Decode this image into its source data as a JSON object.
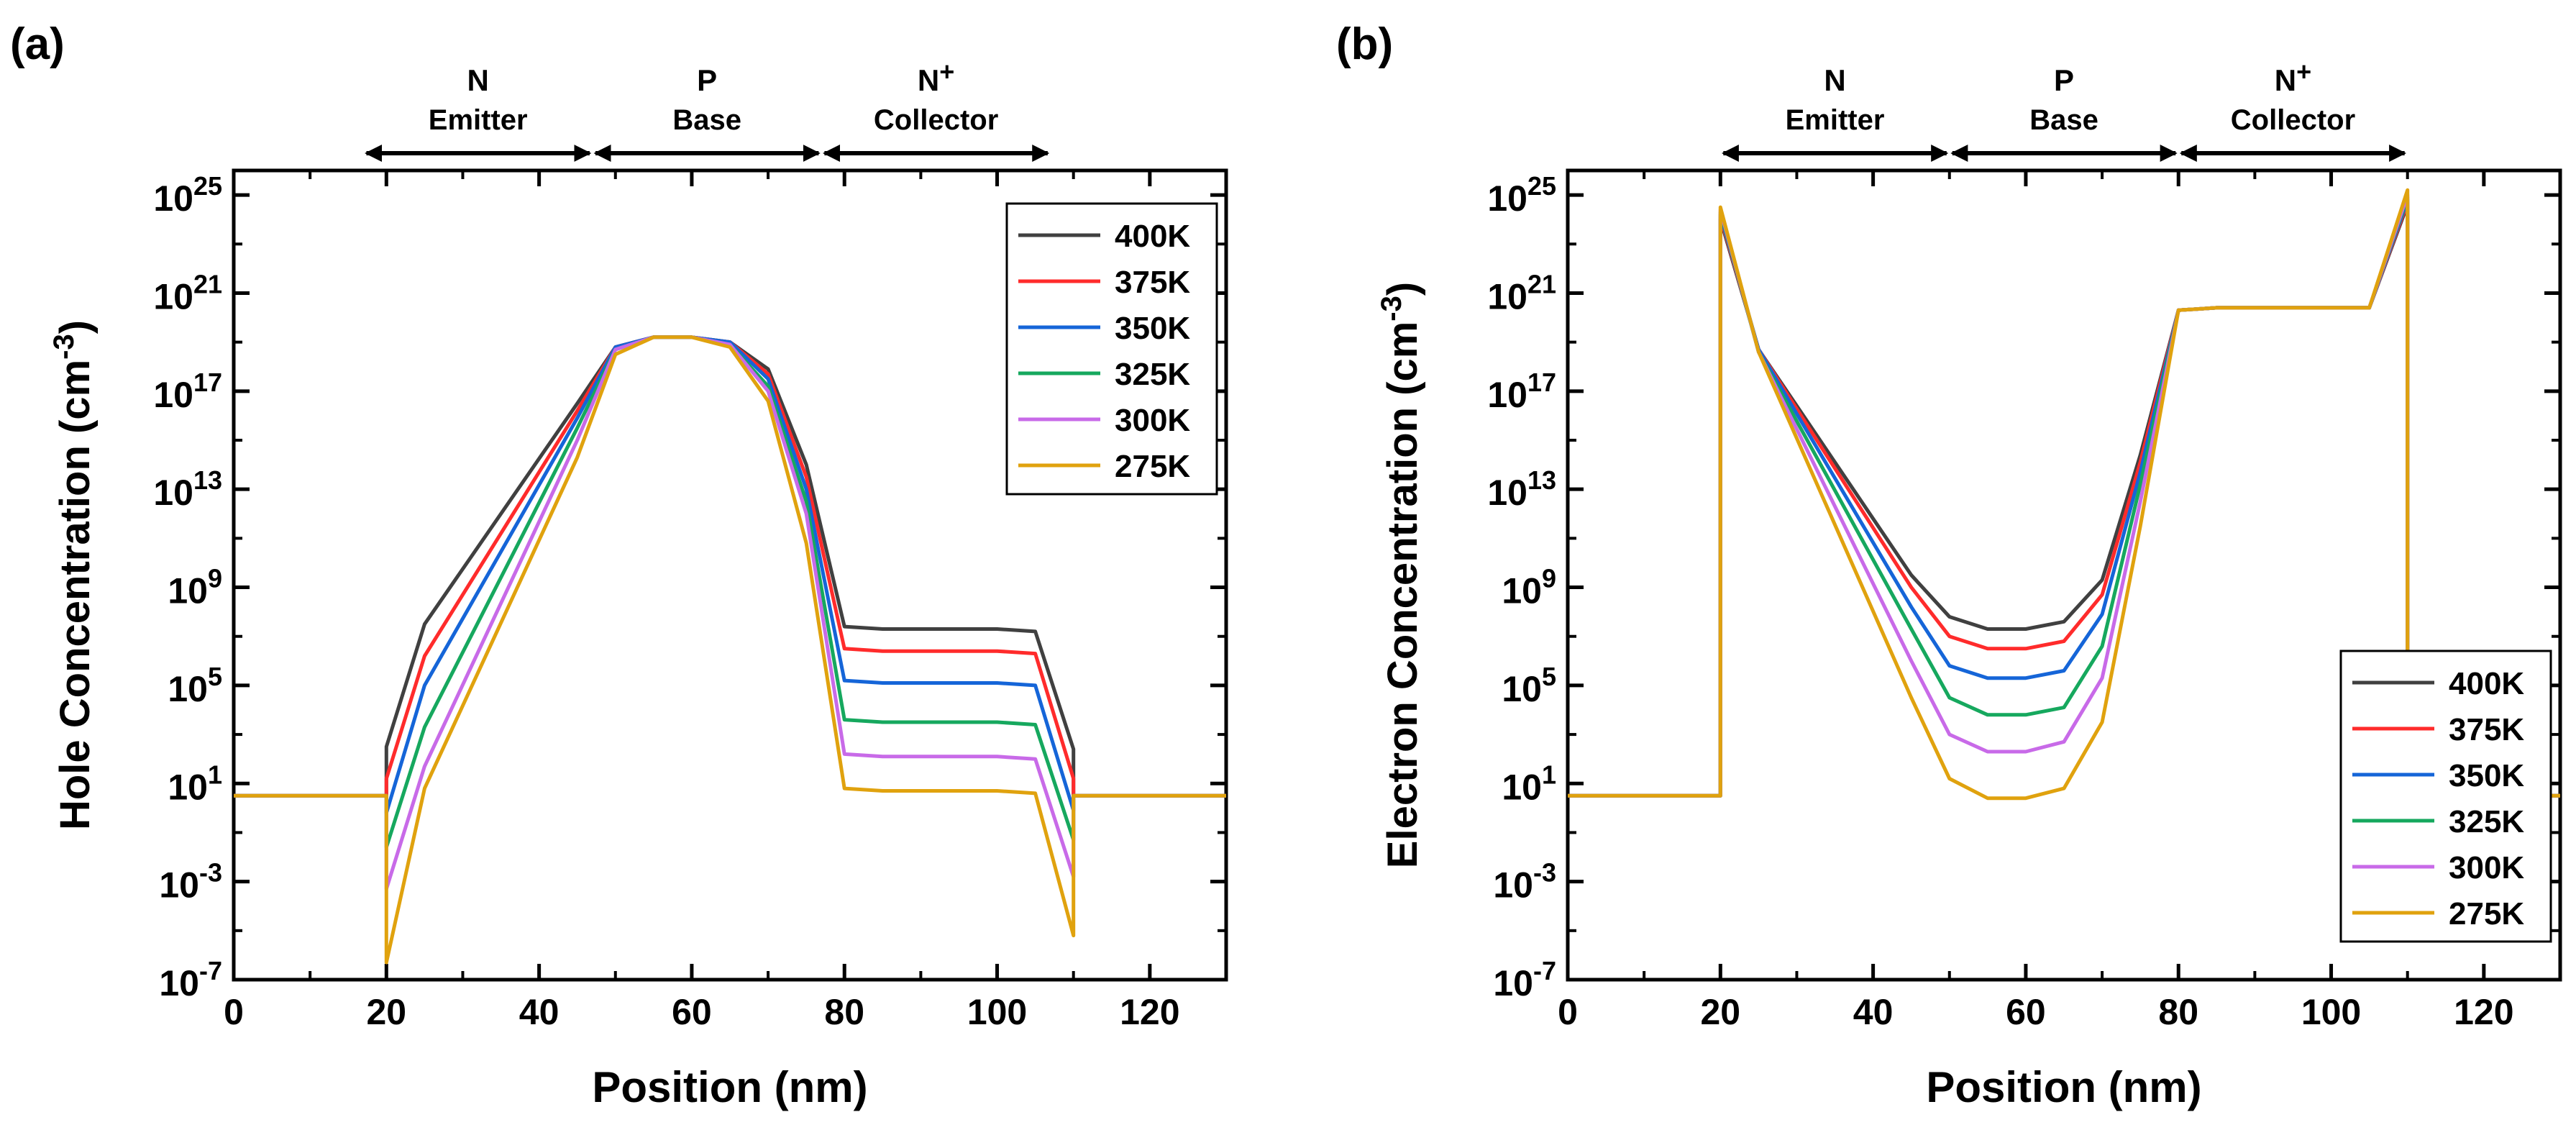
{
  "chart_data": [
    {
      "panel_label": "(a)",
      "type": "line",
      "x_scale": "linear",
      "y_scale": "log10",
      "xlabel": "Position (nm)",
      "ylabel": "Hole Concentration (cm",
      "ylabel_unit_exp": "-3",
      "ylabel_close": ")",
      "xlim": [
        0,
        130
      ],
      "ylim_log10": [
        -7,
        26
      ],
      "x_ticks": [
        "0",
        "20",
        "40",
        "60",
        "80",
        "100",
        "120"
      ],
      "y_ticks": [
        {
          "base": "10",
          "exp": "25",
          "value": 25
        },
        {
          "base": "10",
          "exp": "21",
          "value": 21
        },
        {
          "base": "10",
          "exp": "17",
          "value": 17
        },
        {
          "base": "10",
          "exp": "13",
          "value": 13
        },
        {
          "base": "10",
          "exp": "9",
          "value": 9
        },
        {
          "base": "10",
          "exp": "5",
          "value": 5
        },
        {
          "base": "10",
          "exp": "1",
          "value": 1
        },
        {
          "base": "10",
          "exp": "-3",
          "value": -3
        },
        {
          "base": "10",
          "exp": "-7",
          "value": -7
        }
      ],
      "regions": [
        {
          "name": "N",
          "sup": "",
          "desc": "Emitter",
          "from": 17,
          "to": 47
        },
        {
          "name": "P",
          "sup": "",
          "desc": "Base",
          "from": 47,
          "to": 77
        },
        {
          "name": "N",
          "sup": "+",
          "desc": "Collector",
          "from": 77,
          "to": 107
        }
      ],
      "legend_position": "top-right",
      "series": [
        {
          "name": "400K",
          "color": "#404040",
          "x": [
            0,
            20,
            20,
            25,
            45,
            50,
            55,
            60,
            65,
            70,
            75,
            80,
            85,
            100,
            105,
            110,
            110,
            130
          ],
          "log10_y": [
            0.5,
            0.5,
            2.5,
            7.5,
            16.5,
            18.8,
            19.2,
            19.2,
            19.0,
            17.9,
            14.0,
            7.4,
            7.3,
            7.3,
            7.2,
            2.4,
            0.5,
            0.5
          ]
        },
        {
          "name": "375K",
          "color": "#FF2B2B",
          "x": [
            0,
            20,
            20,
            25,
            45,
            50,
            55,
            60,
            65,
            70,
            75,
            80,
            85,
            100,
            105,
            110,
            110,
            130
          ],
          "log10_y": [
            0.5,
            0.5,
            1.2,
            6.2,
            16.2,
            18.8,
            19.2,
            19.2,
            19.0,
            17.7,
            13.5,
            6.5,
            6.4,
            6.4,
            6.3,
            1.2,
            0.5,
            0.5
          ]
        },
        {
          "name": "350K",
          "color": "#1565D8",
          "x": [
            0,
            20,
            20,
            25,
            45,
            50,
            55,
            60,
            65,
            70,
            75,
            80,
            85,
            100,
            105,
            110,
            110,
            130
          ],
          "log10_y": [
            0.5,
            0.5,
            -0.2,
            5.0,
            15.9,
            18.8,
            19.2,
            19.2,
            19.0,
            17.5,
            13.0,
            5.2,
            5.1,
            5.1,
            5.0,
            -0.1,
            0.5,
            0.5
          ]
        },
        {
          "name": "325K",
          "color": "#16A85E",
          "x": [
            0,
            20,
            20,
            25,
            45,
            50,
            55,
            60,
            65,
            70,
            75,
            80,
            85,
            100,
            105,
            110,
            110,
            130
          ],
          "log10_y": [
            0.5,
            0.5,
            -1.6,
            3.3,
            15.5,
            18.7,
            19.2,
            19.2,
            18.9,
            17.2,
            12.5,
            3.6,
            3.5,
            3.5,
            3.4,
            -1.3,
            0.5,
            0.5
          ]
        },
        {
          "name": "300K",
          "color": "#C86AE8",
          "x": [
            0,
            20,
            20,
            25,
            45,
            50,
            55,
            60,
            65,
            70,
            75,
            80,
            85,
            100,
            105,
            110,
            110,
            130
          ],
          "log10_y": [
            0.5,
            0.5,
            -3.3,
            1.7,
            15.0,
            18.7,
            19.2,
            19.2,
            18.9,
            17.0,
            12.0,
            2.2,
            2.1,
            2.1,
            2.0,
            -2.8,
            0.5,
            0.5
          ]
        },
        {
          "name": "275K",
          "color": "#E0A20E",
          "x": [
            0,
            20,
            20,
            25,
            45,
            50,
            55,
            60,
            65,
            70,
            75,
            80,
            85,
            100,
            105,
            110,
            110,
            130
          ],
          "log10_y": [
            0.5,
            0.5,
            -6.3,
            0.8,
            14.3,
            18.5,
            19.2,
            19.2,
            18.8,
            16.6,
            10.8,
            0.8,
            0.7,
            0.7,
            0.6,
            -5.2,
            0.5,
            0.5
          ]
        }
      ]
    },
    {
      "panel_label": "(b)",
      "type": "line",
      "x_scale": "linear",
      "y_scale": "log10",
      "xlabel": "Position (nm)",
      "ylabel": "Electron Concentration (cm",
      "ylabel_unit_exp": "-3",
      "ylabel_close": ")",
      "xlim": [
        0,
        130
      ],
      "ylim_log10": [
        -7,
        26
      ],
      "x_ticks": [
        "0",
        "20",
        "40",
        "60",
        "80",
        "100",
        "120"
      ],
      "y_ticks": [
        {
          "base": "10",
          "exp": "25",
          "value": 25
        },
        {
          "base": "10",
          "exp": "21",
          "value": 21
        },
        {
          "base": "10",
          "exp": "17",
          "value": 17
        },
        {
          "base": "10",
          "exp": "13",
          "value": 13
        },
        {
          "base": "10",
          "exp": "9",
          "value": 9
        },
        {
          "base": "10",
          "exp": "5",
          "value": 5
        },
        {
          "base": "10",
          "exp": "1",
          "value": 1
        },
        {
          "base": "10",
          "exp": "-3",
          "value": -3
        },
        {
          "base": "10",
          "exp": "-7",
          "value": -7
        }
      ],
      "regions": [
        {
          "name": "N",
          "sup": "",
          "desc": "Emitter",
          "from": 20,
          "to": 50
        },
        {
          "name": "P",
          "sup": "",
          "desc": "Base",
          "from": 50,
          "to": 80
        },
        {
          "name": "N",
          "sup": "+",
          "desc": "Collector",
          "from": 80,
          "to": 110
        }
      ],
      "legend_position": "bottom-right",
      "series": [
        {
          "name": "400K",
          "color": "#404040",
          "x": [
            0,
            20,
            20,
            25,
            45,
            50,
            55,
            60,
            65,
            70,
            75,
            80,
            85,
            100,
            105,
            110,
            110,
            130
          ],
          "log10_y": [
            0.5,
            0.5,
            24.0,
            18.7,
            9.5,
            7.8,
            7.3,
            7.3,
            7.6,
            9.3,
            14.4,
            20.3,
            20.4,
            20.4,
            20.4,
            24.6,
            0.5,
            0.5
          ]
        },
        {
          "name": "375K",
          "color": "#FF2B2B",
          "x": [
            0,
            20,
            20,
            25,
            45,
            50,
            55,
            60,
            65,
            70,
            75,
            80,
            85,
            100,
            105,
            110,
            110,
            130
          ],
          "log10_y": [
            0.5,
            0.5,
            24.1,
            18.7,
            9.0,
            7.0,
            6.5,
            6.5,
            6.8,
            8.7,
            14.1,
            20.3,
            20.4,
            20.4,
            20.4,
            24.7,
            0.5,
            0.5
          ]
        },
        {
          "name": "350K",
          "color": "#1565D8",
          "x": [
            0,
            20,
            20,
            25,
            45,
            50,
            55,
            60,
            65,
            70,
            75,
            80,
            85,
            100,
            105,
            110,
            110,
            130
          ],
          "log10_y": [
            0.5,
            0.5,
            24.2,
            18.7,
            8.2,
            5.8,
            5.3,
            5.3,
            5.6,
            7.9,
            13.7,
            20.3,
            20.4,
            20.4,
            20.4,
            24.8,
            0.5,
            0.5
          ]
        },
        {
          "name": "325K",
          "color": "#16A85E",
          "x": [
            0,
            20,
            20,
            25,
            45,
            50,
            55,
            60,
            65,
            70,
            75,
            80,
            85,
            100,
            105,
            110,
            110,
            130
          ],
          "log10_y": [
            0.5,
            0.5,
            24.3,
            18.6,
            7.3,
            4.5,
            3.8,
            3.8,
            4.1,
            6.6,
            13.2,
            20.3,
            20.4,
            20.4,
            20.4,
            24.9,
            0.5,
            0.5
          ]
        },
        {
          "name": "300K",
          "color": "#C86AE8",
          "x": [
            0,
            20,
            20,
            25,
            45,
            50,
            55,
            60,
            65,
            70,
            75,
            80,
            85,
            100,
            105,
            110,
            110,
            130
          ],
          "log10_y": [
            0.5,
            0.5,
            24.4,
            18.6,
            6.0,
            3.0,
            2.3,
            2.3,
            2.7,
            5.3,
            12.5,
            20.3,
            20.4,
            20.4,
            20.4,
            25.0,
            0.5,
            0.5
          ]
        },
        {
          "name": "275K",
          "color": "#E0A20E",
          "x": [
            0,
            20,
            20,
            25,
            45,
            50,
            55,
            60,
            65,
            70,
            75,
            80,
            85,
            100,
            105,
            110,
            110,
            130
          ],
          "log10_y": [
            0.5,
            0.5,
            24.5,
            18.6,
            4.5,
            1.2,
            0.4,
            0.4,
            0.8,
            3.5,
            11.5,
            20.3,
            20.4,
            20.4,
            20.4,
            25.2,
            0.5,
            0.5
          ]
        }
      ]
    }
  ]
}
